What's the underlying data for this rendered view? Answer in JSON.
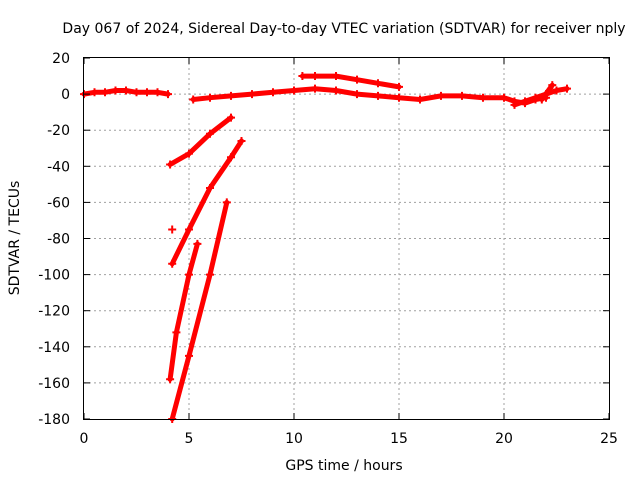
{
  "chart_data": {
    "type": "scatter",
    "title": "Day 067 of 2024, Sidereal Day-to-day VTEC variation (SDTVAR) for receiver nply",
    "xlabel": "GPS time / hours",
    "ylabel": "SDTVAR / TECUs",
    "xlim": [
      0,
      25
    ],
    "ylim": [
      -180,
      20
    ],
    "xticks": [
      0,
      5,
      10,
      15,
      20,
      25
    ],
    "yticks": [
      20,
      0,
      -20,
      -40,
      -60,
      -80,
      -100,
      -120,
      -140,
      -160,
      -180
    ],
    "grid": true,
    "marker": "plus",
    "series_color": "#ff0000",
    "series": [
      {
        "x": [
          0.0,
          0.5,
          1.0,
          1.5,
          2.0,
          2.5,
          3.0,
          3.5,
          4.0
        ],
        "y": [
          0,
          1,
          1,
          2,
          2,
          1,
          1,
          1,
          0
        ]
      },
      {
        "x": [
          5.2,
          6.0,
          7.0,
          8.0,
          9.0,
          10.0,
          11.0,
          12.0,
          13.0,
          14.0,
          15.0,
          16.0,
          17.0,
          18.0,
          19.0,
          20.0,
          20.5,
          21.0,
          21.5,
          22.0
        ],
        "y": [
          -3,
          -2,
          -1,
          0,
          1,
          2,
          3,
          2,
          0,
          -1,
          -2,
          -3,
          -1,
          -1,
          -2,
          -2,
          -4,
          -5,
          -3,
          -2
        ]
      },
      {
        "x": [
          10.4,
          11.0,
          12.0,
          13.0,
          14.0,
          15.0
        ],
        "y": [
          10,
          10,
          10,
          8,
          6,
          4
        ]
      },
      {
        "x": [
          20.5,
          21.0,
          21.5,
          22.0,
          22.5,
          23.0
        ],
        "y": [
          -6,
          -4,
          -2,
          0,
          2,
          3
        ]
      },
      {
        "x": [
          21.8,
          22.3
        ],
        "y": [
          -3,
          5
        ]
      },
      {
        "x": [
          4.1,
          5.0,
          6.0,
          7.0
        ],
        "y": [
          -39,
          -33,
          -22,
          -13
        ]
      },
      {
        "x": [
          4.2,
          5.0,
          6.0,
          7.0,
          7.5
        ],
        "y": [
          -94,
          -75,
          -52,
          -35,
          -26
        ]
      },
      {
        "x": [
          4.1,
          4.4,
          5.0,
          5.4
        ],
        "y": [
          -158,
          -132,
          -100,
          -83
        ]
      },
      {
        "x": [
          4.2,
          5.0,
          6.0,
          6.8
        ],
        "y": [
          -180,
          -145,
          -100,
          -60
        ]
      },
      {
        "x": [
          4.2
        ],
        "y": [
          -75
        ]
      }
    ]
  }
}
